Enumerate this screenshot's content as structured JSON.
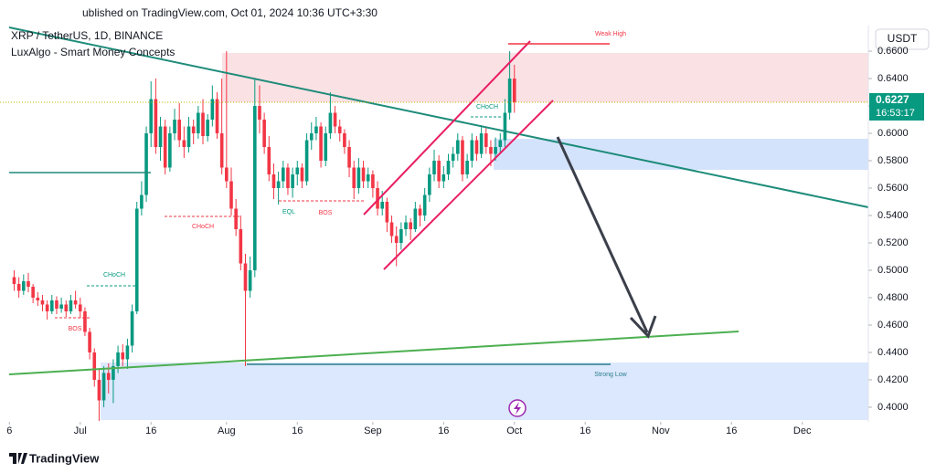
{
  "header": {
    "published": "ublished on TradingView.com, Oct 01, 2024 10:36 UTC+3:30",
    "brand": "TradingView"
  },
  "chart_data": {
    "type": "candlestick",
    "title": "XRP / TetherUS, 1D, BINANCE",
    "subtitle": "LuxAlgo - Smart Money Concepts",
    "currency": "USDT",
    "up_color": "#089981",
    "down_color": "#f23645",
    "last_price": 0.6227,
    "countdown": "16:53:17",
    "annotations": {
      "choch_1": "CHoCH",
      "bos_1": "BOS",
      "choch_2": "CHoCH",
      "eql": "EQL",
      "bos_2": "BOS",
      "choch_3": "CHoCH",
      "weak_high": "Weak High",
      "strong_low": "Strong Low"
    },
    "xlim": [
      "2024-06-14",
      "2024-12-15"
    ],
    "xticks": [
      {
        "value": "2024-06-16",
        "label": "6"
      },
      {
        "value": "2024-07-01",
        "label": "Jul"
      },
      {
        "value": "2024-07-16",
        "label": "16"
      },
      {
        "value": "2024-08-01",
        "label": "Aug"
      },
      {
        "value": "2024-08-16",
        "label": "16"
      },
      {
        "value": "2024-09-01",
        "label": "Sep"
      },
      {
        "value": "2024-09-16",
        "label": "16"
      },
      {
        "value": "2024-10-01",
        "label": "Oct"
      },
      {
        "value": "2024-10-16",
        "label": "16"
      },
      {
        "value": "2024-11-01",
        "label": "Nov"
      },
      {
        "value": "2024-11-16",
        "label": "16"
      },
      {
        "value": "2024-12-01",
        "label": "Dec"
      }
    ],
    "ylim": [
      0.3893,
      0.6787
    ],
    "yticks": [
      {
        "value": 0.4,
        "label": "0.4000"
      },
      {
        "value": 0.42,
        "label": "0.4200"
      },
      {
        "value": 0.44,
        "label": "0.4400"
      },
      {
        "value": 0.46,
        "label": "0.4600"
      },
      {
        "value": 0.48,
        "label": "0.4800"
      },
      {
        "value": 0.5,
        "label": "0.5000"
      },
      {
        "value": 0.52,
        "label": "0.5200"
      },
      {
        "value": 0.54,
        "label": "0.5400"
      },
      {
        "value": 0.56,
        "label": "0.5600"
      },
      {
        "value": 0.58,
        "label": "0.5800"
      },
      {
        "value": 0.6,
        "label": "0.6000"
      },
      {
        "value": 0.62,
        "label": "0.6200"
      },
      {
        "value": 0.64,
        "label": "0.6400"
      },
      {
        "value": 0.66,
        "label": "0.6600"
      }
    ],
    "x": [
      "2024-06-17",
      "2024-06-18",
      "2024-06-19",
      "2024-06-20",
      "2024-06-21",
      "2024-06-22",
      "2024-06-23",
      "2024-06-24",
      "2024-06-25",
      "2024-06-26",
      "2024-06-27",
      "2024-06-28",
      "2024-06-29",
      "2024-06-30",
      "2024-07-01",
      "2024-07-02",
      "2024-07-03",
      "2024-07-04",
      "2024-07-05",
      "2024-07-06",
      "2024-07-07",
      "2024-07-08",
      "2024-07-09",
      "2024-07-10",
      "2024-07-11",
      "2024-07-12",
      "2024-07-13",
      "2024-07-14",
      "2024-07-15",
      "2024-07-16",
      "2024-07-17",
      "2024-07-18",
      "2024-07-19",
      "2024-07-20",
      "2024-07-21",
      "2024-07-22",
      "2024-07-23",
      "2024-07-24",
      "2024-07-25",
      "2024-07-26",
      "2024-07-27",
      "2024-07-28",
      "2024-07-29",
      "2024-07-30",
      "2024-07-31",
      "2024-08-01",
      "2024-08-02",
      "2024-08-03",
      "2024-08-04",
      "2024-08-05",
      "2024-08-06",
      "2024-08-07",
      "2024-08-08",
      "2024-08-09",
      "2024-08-10",
      "2024-08-11",
      "2024-08-12",
      "2024-08-13",
      "2024-08-14",
      "2024-08-15",
      "2024-08-16",
      "2024-08-17",
      "2024-08-18",
      "2024-08-19",
      "2024-08-20",
      "2024-08-21",
      "2024-08-22",
      "2024-08-23",
      "2024-08-24",
      "2024-08-25",
      "2024-08-26",
      "2024-08-27",
      "2024-08-28",
      "2024-08-29",
      "2024-08-30",
      "2024-08-31",
      "2024-09-01",
      "2024-09-02",
      "2024-09-03",
      "2024-09-04",
      "2024-09-05",
      "2024-09-06",
      "2024-09-07",
      "2024-09-08",
      "2024-09-09",
      "2024-09-10",
      "2024-09-11",
      "2024-09-12",
      "2024-09-13",
      "2024-09-14",
      "2024-09-15",
      "2024-09-16",
      "2024-09-17",
      "2024-09-18",
      "2024-09-19",
      "2024-09-20",
      "2024-09-21",
      "2024-09-22",
      "2024-09-23",
      "2024-09-24",
      "2024-09-25",
      "2024-09-26",
      "2024-09-27",
      "2024-09-28",
      "2024-09-29",
      "2024-09-30",
      "2024-10-01"
    ],
    "candles": [
      [
        0.495,
        0.5,
        0.485,
        0.49
      ],
      [
        0.49,
        0.495,
        0.48,
        0.485
      ],
      [
        0.485,
        0.497,
        0.482,
        0.492
      ],
      [
        0.492,
        0.498,
        0.484,
        0.488
      ],
      [
        0.488,
        0.49,
        0.476,
        0.48
      ],
      [
        0.48,
        0.484,
        0.474,
        0.478
      ],
      [
        0.478,
        0.482,
        0.47,
        0.475
      ],
      [
        0.475,
        0.478,
        0.464,
        0.47
      ],
      [
        0.47,
        0.482,
        0.468,
        0.478
      ],
      [
        0.478,
        0.481,
        0.468,
        0.472
      ],
      [
        0.472,
        0.48,
        0.469,
        0.475
      ],
      [
        0.475,
        0.478,
        0.466,
        0.47
      ],
      [
        0.47,
        0.482,
        0.468,
        0.478
      ],
      [
        0.478,
        0.485,
        0.472,
        0.475
      ],
      [
        0.475,
        0.48,
        0.465,
        0.47
      ],
      [
        0.47,
        0.473,
        0.452,
        0.455
      ],
      [
        0.455,
        0.458,
        0.435,
        0.44
      ],
      [
        0.44,
        0.443,
        0.415,
        0.42
      ],
      [
        0.42,
        0.428,
        0.39,
        0.405
      ],
      [
        0.405,
        0.43,
        0.4,
        0.425
      ],
      [
        0.425,
        0.432,
        0.41,
        0.42
      ],
      [
        0.42,
        0.435,
        0.403,
        0.43
      ],
      [
        0.43,
        0.445,
        0.425,
        0.44
      ],
      [
        0.44,
        0.446,
        0.43,
        0.435
      ],
      [
        0.435,
        0.45,
        0.428,
        0.445
      ],
      [
        0.445,
        0.475,
        0.44,
        0.47
      ],
      [
        0.47,
        0.55,
        0.468,
        0.545
      ],
      [
        0.545,
        0.565,
        0.54,
        0.555
      ],
      [
        0.555,
        0.605,
        0.55,
        0.6
      ],
      [
        0.6,
        0.638,
        0.59,
        0.625
      ],
      [
        0.625,
        0.64,
        0.585,
        0.59
      ],
      [
        0.59,
        0.612,
        0.58,
        0.605
      ],
      [
        0.605,
        0.61,
        0.57,
        0.575
      ],
      [
        0.575,
        0.605,
        0.572,
        0.6
      ],
      [
        0.6,
        0.618,
        0.595,
        0.61
      ],
      [
        0.61,
        0.622,
        0.59,
        0.595
      ],
      [
        0.595,
        0.605,
        0.582,
        0.59
      ],
      [
        0.59,
        0.612,
        0.586,
        0.605
      ],
      [
        0.605,
        0.61,
        0.592,
        0.6
      ],
      [
        0.6,
        0.62,
        0.596,
        0.615
      ],
      [
        0.615,
        0.625,
        0.592,
        0.598
      ],
      [
        0.598,
        0.614,
        0.594,
        0.61
      ],
      [
        0.61,
        0.635,
        0.605,
        0.625
      ],
      [
        0.625,
        0.63,
        0.596,
        0.6
      ],
      [
        0.6,
        0.64,
        0.57,
        0.575
      ],
      [
        0.575,
        0.66,
        0.56,
        0.565
      ],
      [
        0.565,
        0.575,
        0.54,
        0.545
      ],
      [
        0.545,
        0.552,
        0.525,
        0.53
      ],
      [
        0.53,
        0.54,
        0.5,
        0.505
      ],
      [
        0.505,
        0.512,
        0.43,
        0.485
      ],
      [
        0.485,
        0.51,
        0.48,
        0.5
      ],
      [
        0.5,
        0.64,
        0.495,
        0.62
      ],
      [
        0.62,
        0.635,
        0.6,
        0.61
      ],
      [
        0.61,
        0.615,
        0.585,
        0.59
      ],
      [
        0.59,
        0.598,
        0.565,
        0.57
      ],
      [
        0.57,
        0.578,
        0.552,
        0.56
      ],
      [
        0.56,
        0.572,
        0.548,
        0.565
      ],
      [
        0.565,
        0.58,
        0.56,
        0.575
      ],
      [
        0.575,
        0.578,
        0.555,
        0.56
      ],
      [
        0.56,
        0.575,
        0.553,
        0.57
      ],
      [
        0.57,
        0.58,
        0.562,
        0.575
      ],
      [
        0.575,
        0.578,
        0.56,
        0.565
      ],
      [
        0.565,
        0.6,
        0.562,
        0.595
      ],
      [
        0.595,
        0.608,
        0.588,
        0.6
      ],
      [
        0.6,
        0.612,
        0.595,
        0.605
      ],
      [
        0.605,
        0.608,
        0.575,
        0.58
      ],
      [
        0.58,
        0.605,
        0.576,
        0.6
      ],
      [
        0.6,
        0.63,
        0.596,
        0.615
      ],
      [
        0.615,
        0.62,
        0.6,
        0.605
      ],
      [
        0.605,
        0.61,
        0.594,
        0.6
      ],
      [
        0.6,
        0.603,
        0.585,
        0.59
      ],
      [
        0.59,
        0.595,
        0.568,
        0.575
      ],
      [
        0.575,
        0.58,
        0.552,
        0.56
      ],
      [
        0.56,
        0.582,
        0.556,
        0.575
      ],
      [
        0.575,
        0.58,
        0.56,
        0.565
      ],
      [
        0.565,
        0.575,
        0.56,
        0.57
      ],
      [
        0.57,
        0.573,
        0.553,
        0.56
      ],
      [
        0.56,
        0.565,
        0.54,
        0.545
      ],
      [
        0.545,
        0.558,
        0.54,
        0.55
      ],
      [
        0.55,
        0.553,
        0.528,
        0.535
      ],
      [
        0.535,
        0.54,
        0.52,
        0.525
      ],
      [
        0.525,
        0.532,
        0.503,
        0.52
      ],
      [
        0.52,
        0.535,
        0.515,
        0.53
      ],
      [
        0.53,
        0.54,
        0.525,
        0.535
      ],
      [
        0.535,
        0.538,
        0.522,
        0.53
      ],
      [
        0.53,
        0.55,
        0.528,
        0.545
      ],
      [
        0.545,
        0.548,
        0.532,
        0.54
      ],
      [
        0.54,
        0.56,
        0.536,
        0.555
      ],
      [
        0.555,
        0.575,
        0.55,
        0.57
      ],
      [
        0.57,
        0.588,
        0.565,
        0.58
      ],
      [
        0.58,
        0.584,
        0.56,
        0.565
      ],
      [
        0.565,
        0.576,
        0.56,
        0.57
      ],
      [
        0.57,
        0.585,
        0.566,
        0.58
      ],
      [
        0.58,
        0.59,
        0.575,
        0.585
      ],
      [
        0.585,
        0.6,
        0.58,
        0.595
      ],
      [
        0.595,
        0.598,
        0.565,
        0.57
      ],
      [
        0.57,
        0.585,
        0.567,
        0.58
      ],
      [
        0.58,
        0.6,
        0.575,
        0.595
      ],
      [
        0.595,
        0.598,
        0.58,
        0.585
      ],
      [
        0.585,
        0.606,
        0.582,
        0.6
      ],
      [
        0.6,
        0.604,
        0.585,
        0.59
      ],
      [
        0.59,
        0.595,
        0.576,
        0.585
      ],
      [
        0.585,
        0.597,
        0.58,
        0.59
      ],
      [
        0.59,
        0.6,
        0.585,
        0.595
      ],
      [
        0.595,
        0.625,
        0.59,
        0.615
      ],
      [
        0.615,
        0.66,
        0.61,
        0.64
      ],
      [
        0.64,
        0.65,
        0.615,
        0.6227
      ]
    ]
  }
}
